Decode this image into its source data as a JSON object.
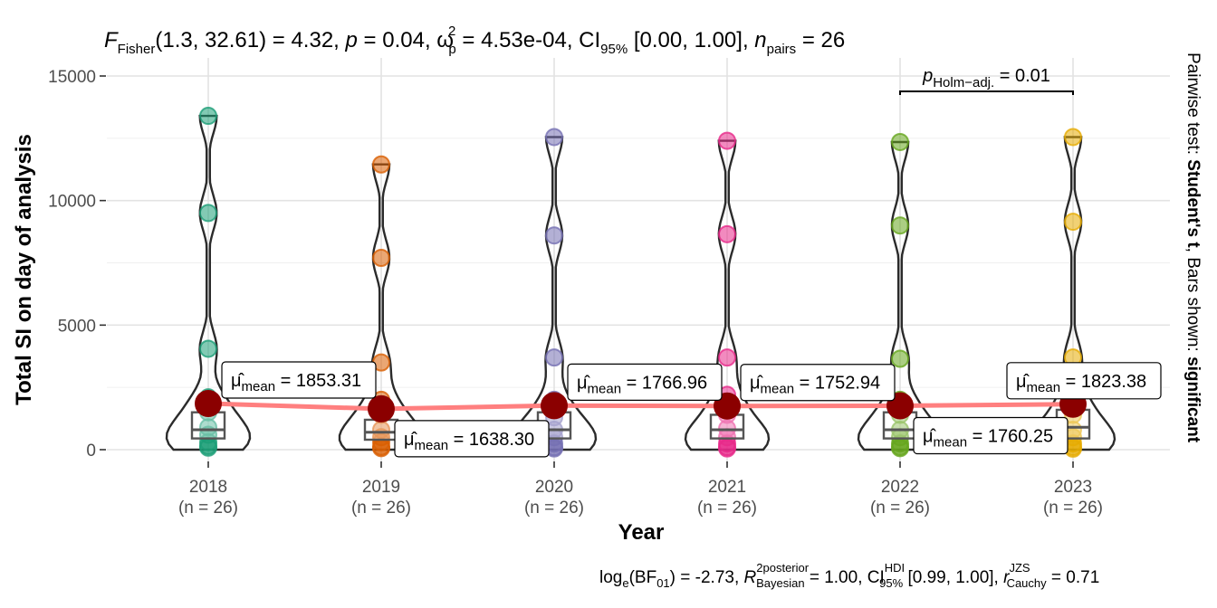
{
  "chart_data": {
    "type": "violin",
    "title_parts": {
      "stat": "F",
      "stat_sub": "Fisher",
      "args": "(1.3, 32.61)",
      "stat_value": " = 4.32, ",
      "p_label": "p",
      "p_value": " = 0.04, ",
      "effect": "ω",
      "effect_sup": "2",
      "effect_sub": "p",
      "effect_value": " = 4.53e-04, CI",
      "ci_sub": "95%",
      "ci_value": " [0.00, 1.00], ",
      "n_label": "n",
      "n_sub": "pairs",
      "n_value": " = 26"
    },
    "xlabel": "Year",
    "ylabel": "Total SI on day of analysis",
    "ylim": [
      0,
      15000
    ],
    "yticks": [
      0,
      5000,
      10000,
      15000
    ],
    "categories": [
      "2018",
      "2019",
      "2020",
      "2021",
      "2022",
      "2023"
    ],
    "n_labels": [
      "(n = 26)",
      "(n = 26)",
      "(n = 26)",
      "(n = 26)",
      "(n = 26)",
      "(n = 26)"
    ],
    "means": [
      1853.31,
      1638.3,
      1766.96,
      1752.94,
      1760.25,
      1823.38
    ],
    "mean_labels": [
      "= 1853.31",
      "= 1638.30",
      "= 1766.96",
      "= 1752.94",
      "= 1760.25",
      "= 1823.38"
    ],
    "mean_symbol": "μ̂",
    "mean_sub": "mean",
    "group_colors": [
      "#1B9E77",
      "#D95F02",
      "#7570B3",
      "#E7298A",
      "#66A61E",
      "#E6AB02"
    ],
    "points": [
      [
        13400,
        9500,
        4050,
        2100,
        1500,
        900,
        600,
        300,
        150,
        80
      ],
      [
        11450,
        7700,
        3500,
        2000,
        1400,
        800,
        500,
        300,
        120,
        60
      ],
      [
        12550,
        8600,
        3700,
        2000,
        1300,
        800,
        500,
        250,
        100,
        50
      ],
      [
        12400,
        8650,
        3700,
        2200,
        1400,
        850,
        500,
        250,
        110,
        50
      ],
      [
        12350,
        9000,
        3650,
        2000,
        1400,
        800,
        500,
        250,
        120,
        60
      ],
      [
        12550,
        9150,
        3700,
        2100,
        1400,
        800,
        500,
        250,
        110,
        40
      ]
    ],
    "boxplots": [
      {
        "q1": 450,
        "median": 800,
        "q3": 1500
      },
      {
        "q1": 400,
        "median": 700,
        "q3": 1200
      },
      {
        "q1": 450,
        "median": 800,
        "q3": 1500
      },
      {
        "q1": 450,
        "median": 800,
        "q3": 1400
      },
      {
        "q1": 450,
        "median": 800,
        "q3": 1500
      },
      {
        "q1": 450,
        "median": 900,
        "q3": 1600
      }
    ],
    "mean_line_color": "#FF7F7F",
    "mean_point_color": "#8B0000",
    "pairwise": {
      "from": "2022",
      "to": "2023",
      "label_main": "p",
      "label_sub": "Holm−adj.",
      "label_value": " = 0.01"
    },
    "side_text": {
      "prefix": "Pairwise test: ",
      "test": "Student's t",
      "middle": ", Bars shown: ",
      "bars": "significant"
    },
    "caption_parts": {
      "p1": "log",
      "p1_sub": "e",
      "p2": "(BF",
      "p2_sub": "01",
      "p3": ") = -2.73, ",
      "r": "R",
      "r_sup": "2",
      "r_sup2": "posterior",
      "r_sub": "Bayesian",
      "p4": " = 1.00, CI",
      "ci_sup": "HDI",
      "ci_sub": "95%",
      "p5": " [0.99, 1.00], ",
      "rc": "r",
      "rc_sup": "JZS",
      "rc_sub": "Cauchy",
      "p6": " = 0.71"
    },
    "grid": true
  }
}
